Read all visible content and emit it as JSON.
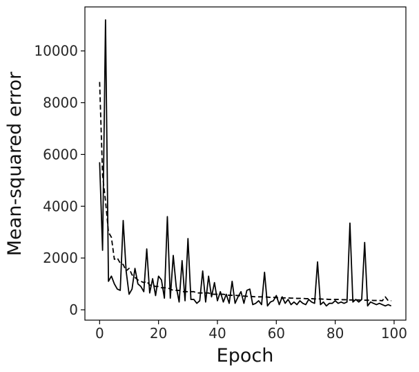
{
  "chart_data": {
    "type": "line",
    "title": "",
    "xlabel": "Epoch",
    "ylabel": "Mean-squared error",
    "xlim": [
      -5,
      104
    ],
    "ylim": [
      -400,
      11700
    ],
    "xticks": [
      0,
      20,
      40,
      60,
      80,
      100
    ],
    "yticks": [
      0,
      2000,
      4000,
      6000,
      8000,
      10000
    ],
    "grid": false,
    "legend": "none",
    "series": [
      {
        "style": "solid",
        "color": "#000000",
        "x": [
          0,
          1,
          2,
          3,
          4,
          5,
          6,
          7,
          8,
          9,
          10,
          11,
          12,
          13,
          14,
          15,
          16,
          17,
          18,
          19,
          20,
          21,
          22,
          23,
          24,
          25,
          26,
          27,
          28,
          29,
          30,
          31,
          32,
          33,
          34,
          35,
          36,
          37,
          38,
          39,
          40,
          41,
          42,
          43,
          44,
          45,
          46,
          47,
          48,
          49,
          50,
          51,
          52,
          53,
          54,
          55,
          56,
          57,
          58,
          59,
          60,
          61,
          62,
          63,
          64,
          65,
          66,
          67,
          68,
          69,
          70,
          71,
          72,
          73,
          74,
          75,
          76,
          77,
          78,
          79,
          80,
          81,
          82,
          83,
          84,
          85,
          86,
          87,
          88,
          89,
          90,
          91,
          92,
          93,
          94,
          95,
          96,
          97,
          98,
          99
        ],
        "y": [
          5700,
          2300,
          11200,
          1100,
          1300,
          1000,
          800,
          750,
          3450,
          1500,
          600,
          800,
          1600,
          1000,
          900,
          700,
          2350,
          650,
          1200,
          550,
          1300,
          1150,
          450,
          3600,
          450,
          2100,
          900,
          300,
          1900,
          350,
          2750,
          400,
          400,
          250,
          350,
          1500,
          300,
          1300,
          500,
          1050,
          350,
          700,
          300,
          600,
          250,
          1100,
          250,
          500,
          700,
          250,
          750,
          800,
          200,
          250,
          350,
          200,
          1450,
          150,
          300,
          350,
          550,
          200,
          500,
          250,
          400,
          200,
          300,
          200,
          350,
          250,
          200,
          400,
          300,
          250,
          1850,
          200,
          300,
          150,
          250,
          250,
          350,
          250,
          300,
          250,
          300,
          3350,
          300,
          400,
          300,
          400,
          2600,
          150,
          300,
          250,
          200,
          250,
          200,
          150,
          200,
          150
        ]
      },
      {
        "style": "dashed",
        "color": "#000000",
        "x": [
          0,
          1,
          2,
          3,
          4,
          5,
          6,
          7,
          8,
          9,
          10,
          11,
          12,
          13,
          14,
          15,
          16,
          17,
          18,
          19,
          20,
          21,
          22,
          23,
          24,
          25,
          26,
          27,
          28,
          29,
          30,
          31,
          32,
          33,
          34,
          35,
          36,
          37,
          38,
          39,
          40,
          41,
          42,
          43,
          44,
          45,
          46,
          47,
          48,
          49,
          50,
          51,
          52,
          53,
          54,
          55,
          56,
          57,
          58,
          59,
          60,
          61,
          62,
          63,
          64,
          65,
          66,
          67,
          68,
          69,
          70,
          71,
          72,
          73,
          74,
          75,
          76,
          77,
          78,
          79,
          80,
          81,
          82,
          83,
          84,
          85,
          86,
          87,
          88,
          89,
          90,
          91,
          92,
          93,
          94,
          95,
          96,
          97,
          98,
          99
        ],
        "y": [
          8800,
          5200,
          4200,
          3000,
          2800,
          1950,
          2000,
          1800,
          1750,
          1500,
          1600,
          1350,
          1250,
          1150,
          1100,
          1050,
          1100,
          950,
          950,
          900,
          900,
          850,
          850,
          850,
          800,
          750,
          750,
          750,
          700,
          700,
          700,
          700,
          700,
          650,
          650,
          650,
          650,
          650,
          600,
          600,
          600,
          600,
          600,
          580,
          560,
          560,
          560,
          550,
          540,
          530,
          520,
          520,
          510,
          500,
          500,
          500,
          500,
          490,
          480,
          480,
          470,
          470,
          460,
          460,
          460,
          450,
          450,
          440,
          440,
          440,
          430,
          430,
          430,
          420,
          420,
          420,
          410,
          410,
          400,
          400,
          400,
          400,
          390,
          390,
          390,
          380,
          380,
          380,
          380,
          370,
          370,
          370,
          370,
          360,
          360,
          360,
          350,
          500,
          350,
          350
        ]
      }
    ]
  }
}
